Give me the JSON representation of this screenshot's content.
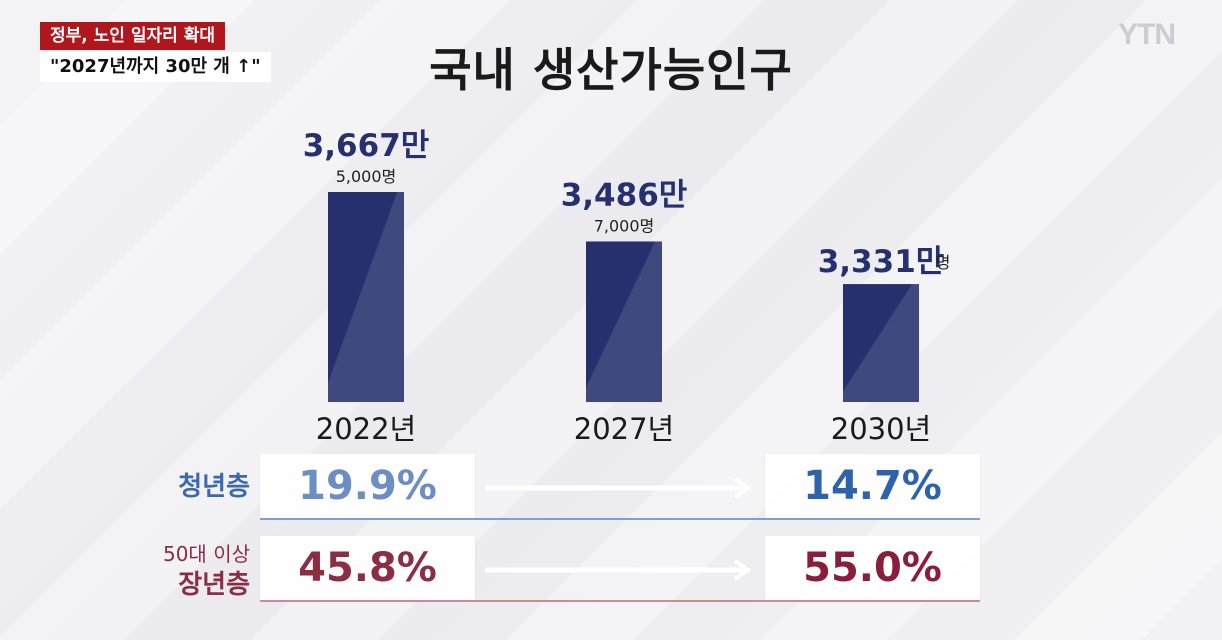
{
  "caption": {
    "line1": "정부, 노인 일자리 확대",
    "line2": "\"2027년까지 30만 개 ↑\""
  },
  "logo_text": "YTN",
  "chart_data": {
    "type": "bar",
    "title": "국내 생산가능인구",
    "categories": [
      "2022년",
      "2027년",
      "2030년"
    ],
    "values": [
      36675000,
      34867000,
      33310000
    ],
    "value_labels": [
      {
        "main": "3,667만",
        "sub": "5,000명"
      },
      {
        "main": "3,486만",
        "sub": "7,000명"
      },
      {
        "main": "3,331만",
        "sub": "명"
      }
    ],
    "bar_color": "#26306e"
  },
  "comparison": {
    "youth": {
      "label": "청년층",
      "from": "19.9%",
      "to": "14.7%",
      "from_color": "#6d8ec2",
      "to_color": "#2f62ad"
    },
    "senior": {
      "label_line1": "50대 이상",
      "label_line2": "장년층",
      "from": "45.8%",
      "to": "55.0%",
      "from_color": "#8a2d45",
      "to_color": "#8a1c3c"
    }
  }
}
